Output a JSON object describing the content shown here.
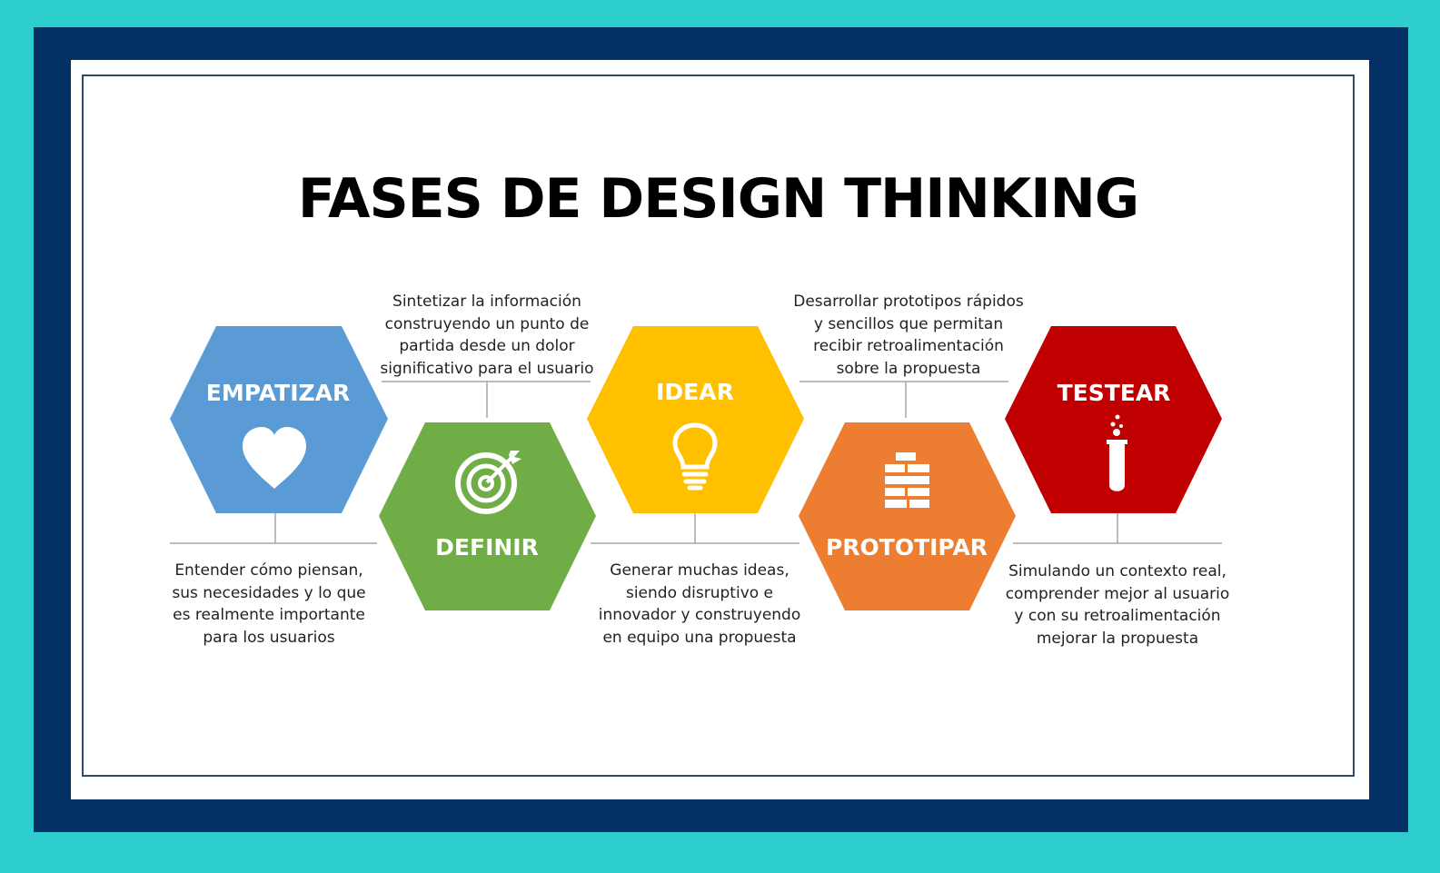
{
  "title": "FASES DE DESIGN THINKING",
  "colors": {
    "background": "#2ecece",
    "frame": "#033166",
    "empatizar": "#5b9bd5",
    "definir": "#70ad47",
    "idear": "#ffc000",
    "prototipar": "#ed7d31",
    "testear": "#c00000",
    "connector": "#a6a6a6"
  },
  "phases": [
    {
      "label": "EMPATIZAR",
      "icon": "heart-icon",
      "description": "Entender cómo piensan,\nsus necesidades y lo que\nes realmente importante\npara los usuarios"
    },
    {
      "label": "DEFINIR",
      "icon": "target-icon",
      "description": "Sintetizar la información\nconstruyendo un punto de\npartida desde un dolor\nsignificativo para el usuario"
    },
    {
      "label": "IDEAR",
      "icon": "lightbulb-icon",
      "description": "Generar muchas ideas,\nsiendo disruptivo e\ninnovador y construyendo\nen equipo una propuesta"
    },
    {
      "label": "PROTOTIPAR",
      "icon": "bricks-icon",
      "description": "Desarrollar prototipos rápidos\ny sencillos que permitan\nrecibir retroalimentación\nsobre la propuesta"
    },
    {
      "label": "TESTEAR",
      "icon": "test-tube-icon",
      "description": "Simulando un contexto real,\ncomprender mejor al usuario\ny con su retroalimentación\nmejorar la propuesta"
    }
  ]
}
